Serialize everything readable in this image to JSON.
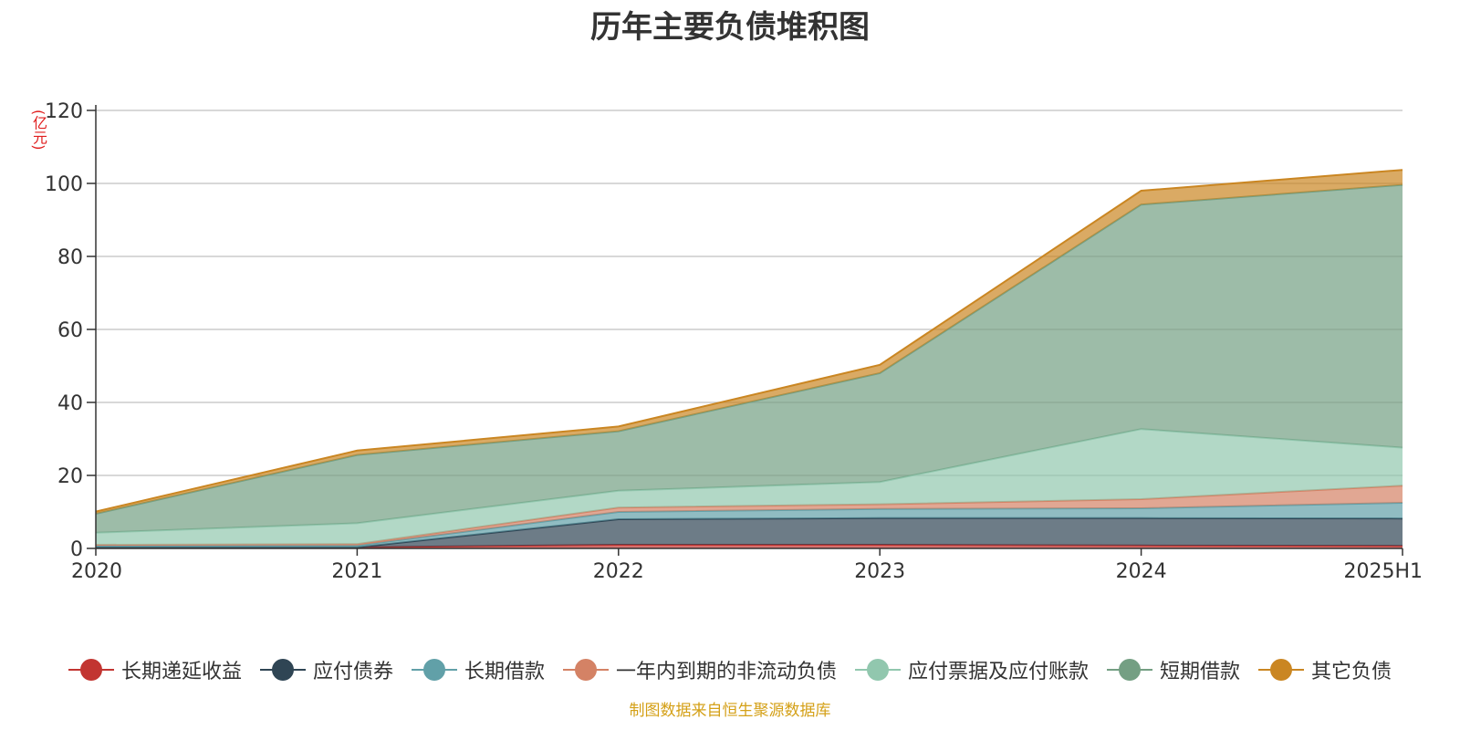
{
  "chart_data": {
    "type": "area",
    "stacked": true,
    "title": "历年主要负债堆积图",
    "unit": "(亿元)",
    "categories": [
      "2020",
      "2021",
      "2022",
      "2023",
      "2024",
      "2025H1"
    ],
    "y_ticks": [
      "0",
      "20",
      "40",
      "60",
      "80",
      "100",
      "120"
    ],
    "ylim": [
      0,
      120
    ],
    "grid": true,
    "legend_position": "bottom",
    "series": [
      {
        "name": "长期递延收益",
        "color": "#c23531",
        "values": [
          0.3,
          0.3,
          1.0,
          1.0,
          0.8,
          0.7
        ]
      },
      {
        "name": "应付债券",
        "color": "#2f4554",
        "values": [
          0,
          0,
          7.0,
          7.3,
          7.5,
          7.5
        ]
      },
      {
        "name": "长期借款",
        "color": "#61a0a8",
        "values": [
          0.5,
          0.5,
          2.0,
          2.5,
          2.7,
          4.3
        ]
      },
      {
        "name": "一年内到期的非流动负债",
        "color": "#d48265",
        "values": [
          0.2,
          0.4,
          1.2,
          1.3,
          2.5,
          4.7
        ]
      },
      {
        "name": "应付票据及应付账款",
        "color": "#91c7ae",
        "values": [
          3.3,
          5.7,
          4.6,
          6.1,
          19.2,
          10.4
        ]
      },
      {
        "name": "短期借款",
        "color": "#749f83",
        "values": [
          5.2,
          18.7,
          16.3,
          29.8,
          61.5,
          72.0
        ]
      },
      {
        "name": "其它负债",
        "color": "#ca8622",
        "values": [
          0.6,
          1.2,
          1.3,
          2.3,
          3.8,
          4.1
        ]
      }
    ]
  },
  "footer": {
    "source": "制图数据来自恒生聚源数据库"
  }
}
